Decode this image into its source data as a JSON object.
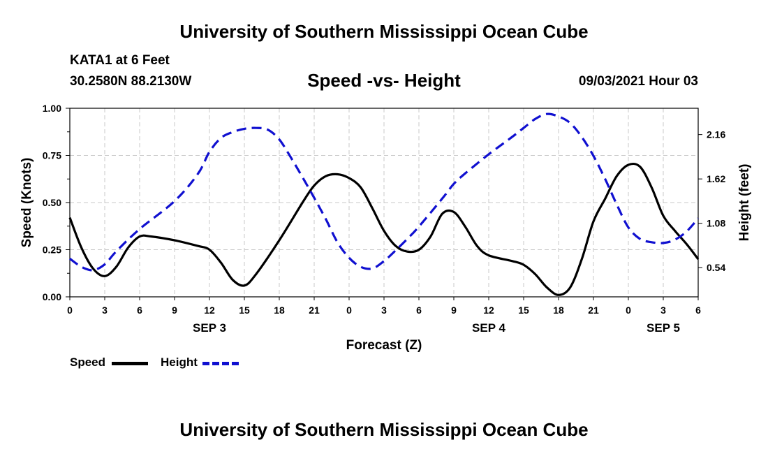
{
  "header": {
    "title_top": "University of Southern Mississippi Ocean Cube",
    "station": "KATA1 at 6 Feet",
    "coords": "30.2580N  88.2130W",
    "plot_title": "Speed -vs- Height",
    "datetime": "09/03/2021 Hour 03",
    "title_bottom": "University of Southern Mississippi Ocean Cube"
  },
  "legend": {
    "speed_label": "Speed",
    "height_label": "Height"
  },
  "colors": {
    "speed": "#000000",
    "height": "#1010d0",
    "grid": "#c8c8c8"
  },
  "chart_data": {
    "type": "line",
    "xlabel": "Forecast (Z)",
    "ylabel_left": "Speed (Knots)",
    "ylabel_right": "Height (feet)",
    "x_range_hours": [
      0,
      54
    ],
    "x_ticks": [
      {
        "h": 0,
        "label": "0"
      },
      {
        "h": 3,
        "label": "3"
      },
      {
        "h": 6,
        "label": "6"
      },
      {
        "h": 9,
        "label": "9"
      },
      {
        "h": 12,
        "label": "12"
      },
      {
        "h": 15,
        "label": "15"
      },
      {
        "h": 18,
        "label": "18"
      },
      {
        "h": 21,
        "label": "21"
      },
      {
        "h": 24,
        "label": "0"
      },
      {
        "h": 27,
        "label": "3"
      },
      {
        "h": 30,
        "label": "6"
      },
      {
        "h": 33,
        "label": "9"
      },
      {
        "h": 36,
        "label": "12"
      },
      {
        "h": 39,
        "label": "15"
      },
      {
        "h": 42,
        "label": "18"
      },
      {
        "h": 45,
        "label": "21"
      },
      {
        "h": 48,
        "label": "0"
      },
      {
        "h": 51,
        "label": "3"
      },
      {
        "h": 54,
        "label": "6"
      }
    ],
    "day_labels": [
      {
        "h": 12,
        "label": "SEP 3"
      },
      {
        "h": 36,
        "label": "SEP 4"
      },
      {
        "h": 51,
        "label": "SEP 5"
      }
    ],
    "y_left": {
      "min": 0,
      "max": 1.0,
      "ticks": [
        "0.00",
        "0.25",
        "0.50",
        "0.75",
        "1.00"
      ]
    },
    "y_right": {
      "min": 0.185,
      "max": 2.48,
      "ticks": [
        "0.54",
        "1.08",
        "1.62",
        "2.16"
      ]
    },
    "series": [
      {
        "name": "Speed",
        "axis": "left",
        "style": "solid",
        "x": [
          0,
          1,
          2,
          3,
          4,
          5,
          6,
          7,
          9,
          11,
          12,
          13,
          14,
          15,
          16,
          18,
          20,
          21,
          22,
          23,
          24,
          25,
          26,
          27,
          28,
          29,
          30,
          31,
          32,
          33,
          34,
          35,
          36,
          38,
          39,
          40,
          41,
          42,
          43,
          44,
          45,
          46,
          47,
          48,
          49,
          50,
          51,
          52,
          53,
          54
        ],
        "values": [
          0.42,
          0.26,
          0.15,
          0.11,
          0.16,
          0.26,
          0.32,
          0.32,
          0.3,
          0.27,
          0.25,
          0.18,
          0.09,
          0.06,
          0.12,
          0.3,
          0.5,
          0.59,
          0.64,
          0.65,
          0.63,
          0.58,
          0.47,
          0.35,
          0.27,
          0.24,
          0.25,
          0.32,
          0.44,
          0.45,
          0.37,
          0.27,
          0.22,
          0.19,
          0.17,
          0.12,
          0.05,
          0.01,
          0.05,
          0.2,
          0.4,
          0.52,
          0.64,
          0.7,
          0.69,
          0.58,
          0.43,
          0.35,
          0.28,
          0.2
        ]
      },
      {
        "name": "Height",
        "axis": "right",
        "style": "dashed",
        "x": [
          0,
          1,
          2,
          3,
          4,
          6,
          9,
          11,
          12,
          13,
          14,
          15,
          16,
          17,
          18,
          19,
          20,
          21,
          22,
          23,
          24,
          25,
          26,
          27,
          28,
          29,
          30,
          32,
          33,
          34,
          36,
          38,
          39,
          40,
          41,
          42,
          43,
          44,
          45,
          46,
          47,
          48,
          49,
          50,
          51,
          52,
          53,
          54
        ],
        "values": [
          0.65,
          0.55,
          0.51,
          0.58,
          0.74,
          1.01,
          1.35,
          1.68,
          1.95,
          2.12,
          2.19,
          2.23,
          2.24,
          2.22,
          2.1,
          1.88,
          1.64,
          1.39,
          1.13,
          0.85,
          0.66,
          0.55,
          0.53,
          0.62,
          0.75,
          0.89,
          1.04,
          1.38,
          1.56,
          1.69,
          1.92,
          2.13,
          2.24,
          2.35,
          2.41,
          2.38,
          2.3,
          2.13,
          1.9,
          1.62,
          1.31,
          1.03,
          0.89,
          0.85,
          0.84,
          0.88,
          0.98,
          1.14
        ]
      }
    ]
  }
}
